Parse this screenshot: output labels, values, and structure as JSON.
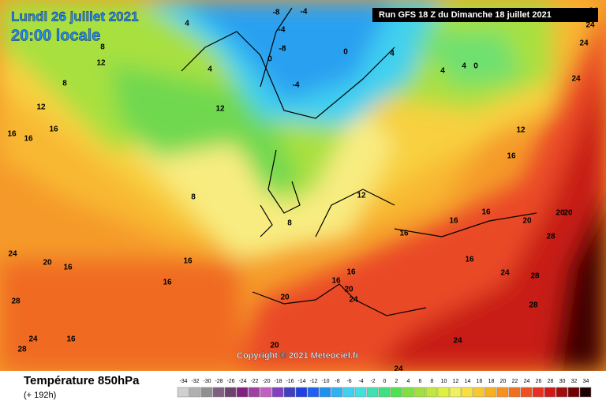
{
  "header": {
    "date": "Lundi 26 juillet 2021",
    "time": "20:00 locale",
    "run": "Run GFS 18 Z du Dimanche 18 juillet 2021"
  },
  "footer": {
    "title": "Température 850hPa",
    "subtitle": "(+ 192h)",
    "copyright": "Copyright © 2021 Meteociel.fr"
  },
  "legend": {
    "ticks": [
      -34,
      -32,
      -30,
      -28,
      -26,
      -24,
      -22,
      -20,
      -18,
      -16,
      -14,
      -12,
      -10,
      -8,
      -6,
      -4,
      -2,
      0,
      2,
      4,
      6,
      8,
      10,
      12,
      14,
      16,
      18,
      20,
      22,
      24,
      26,
      28,
      30,
      32,
      34
    ],
    "colors": [
      "#d0d0d0",
      "#b0b0b0",
      "#909090",
      "#806080",
      "#704070",
      "#802080",
      "#a040a0",
      "#c060c0",
      "#8040c0",
      "#4040c0",
      "#2040e0",
      "#2060f0",
      "#2090f0",
      "#30b0f0",
      "#40d0f0",
      "#40e0e0",
      "#40e0b0",
      "#40e080",
      "#50e050",
      "#80e040",
      "#a0e040",
      "#c0e840",
      "#e0f040",
      "#f0f060",
      "#f8e040",
      "#f8c830",
      "#f8b020",
      "#f89020",
      "#f07020",
      "#f05020",
      "#e83020",
      "#d01818",
      "#a00c0c",
      "#700000",
      "#200000"
    ]
  },
  "map_labels": [
    4,
    -8,
    -4,
    -4,
    -8,
    0,
    -4,
    0,
    4,
    4,
    4,
    4,
    0,
    8,
    12,
    12,
    8,
    16,
    16,
    16,
    12,
    12,
    8,
    8,
    12,
    16,
    16,
    16,
    16,
    16,
    16,
    16,
    20,
    20,
    20,
    24,
    24,
    28,
    28,
    28,
    24,
    24,
    20,
    20,
    16,
    16,
    16,
    20,
    24,
    24,
    28,
    28,
    20,
    16,
    24,
    24,
    24,
    24
  ]
}
